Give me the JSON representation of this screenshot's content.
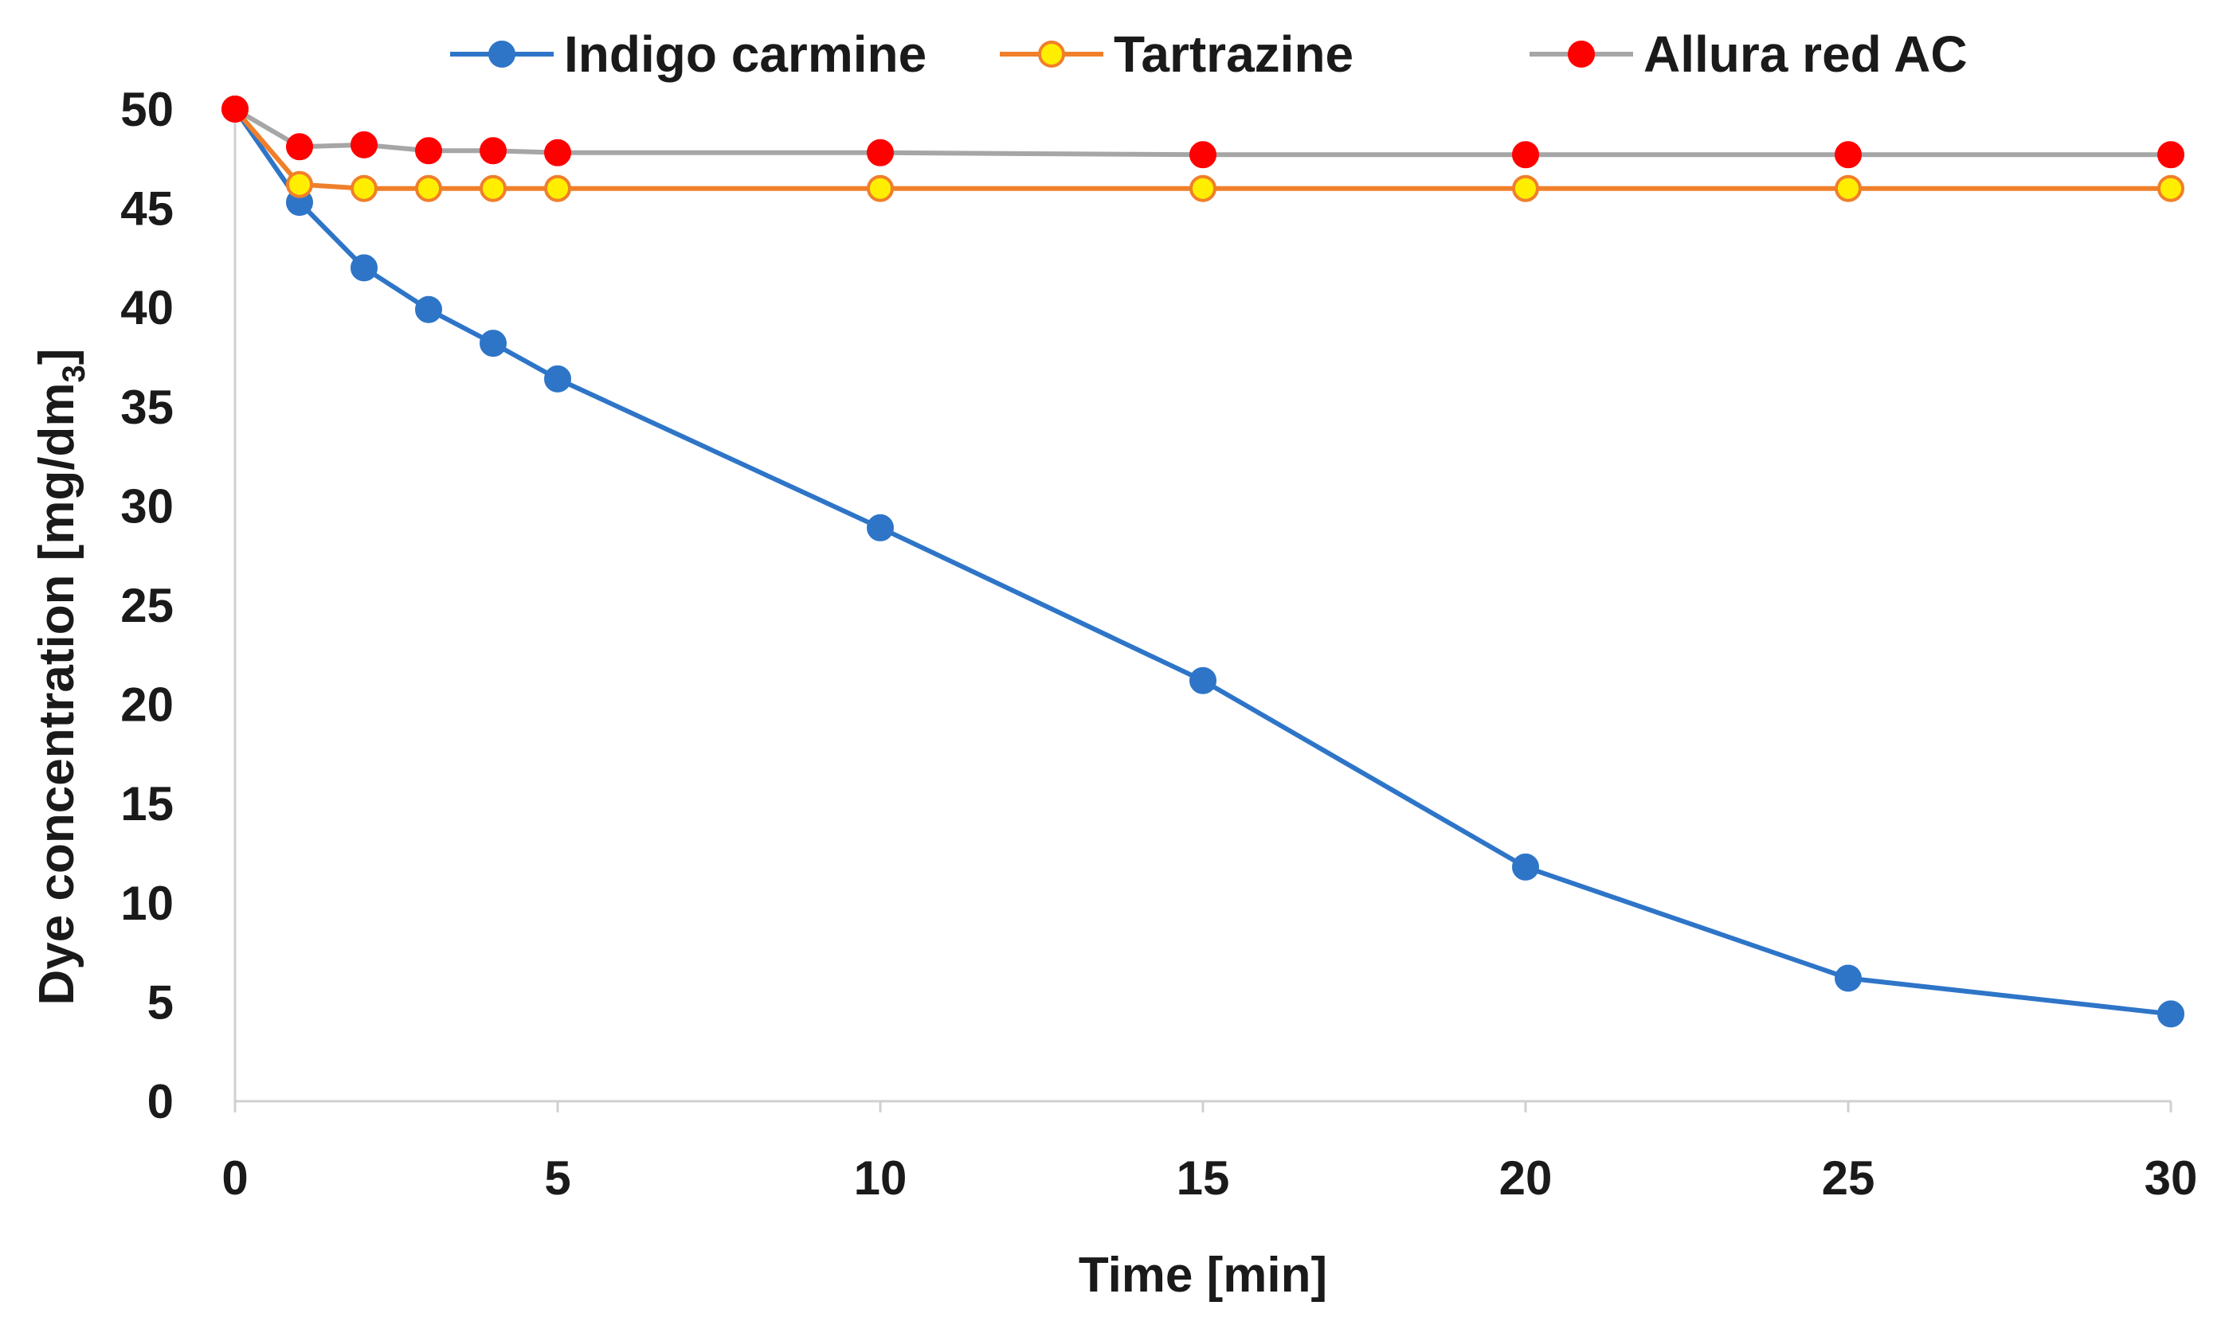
{
  "chart_data": {
    "type": "line",
    "title": "",
    "xlabel": "Time [min]",
    "ylabel": "Dye concentration [mg/dm",
    "ylabel_sub": "3",
    "ylabel_close": "]",
    "xlim": [
      0,
      30
    ],
    "ylim": [
      0,
      50
    ],
    "x_ticks": [
      0,
      5,
      10,
      15,
      20,
      25,
      30
    ],
    "y_ticks": [
      0,
      5,
      10,
      15,
      20,
      25,
      30,
      35,
      40,
      45,
      50
    ],
    "x": [
      0,
      1,
      2,
      3,
      4,
      5,
      10,
      15,
      20,
      25,
      30
    ],
    "grid": false,
    "legend_position": "top",
    "series": [
      {
        "name": "Indigo carmine",
        "line_color": "#2e75c8",
        "marker_fill": "#2e75c8",
        "marker_stroke": "#2e75c8",
        "values": [
          50,
          45.3,
          42,
          39.9,
          38.2,
          36.4,
          28.9,
          21.2,
          11.8,
          6.2,
          4.4
        ]
      },
      {
        "name": "Tartrazine",
        "line_color": "#f07f2a",
        "marker_fill": "#ffee00",
        "marker_stroke": "#f07f2a",
        "values": [
          50,
          46.2,
          46.0,
          46.0,
          46.0,
          46.0,
          46.0,
          46.0,
          46.0,
          46.0,
          46.0
        ]
      },
      {
        "name": "Allura red AC",
        "line_color": "#a6a6a6",
        "marker_fill": "#ff0000",
        "marker_stroke": "#ff0000",
        "values": [
          50,
          48.1,
          48.2,
          47.9,
          47.9,
          47.8,
          47.8,
          47.7,
          47.7,
          47.7,
          47.7
        ]
      }
    ]
  }
}
